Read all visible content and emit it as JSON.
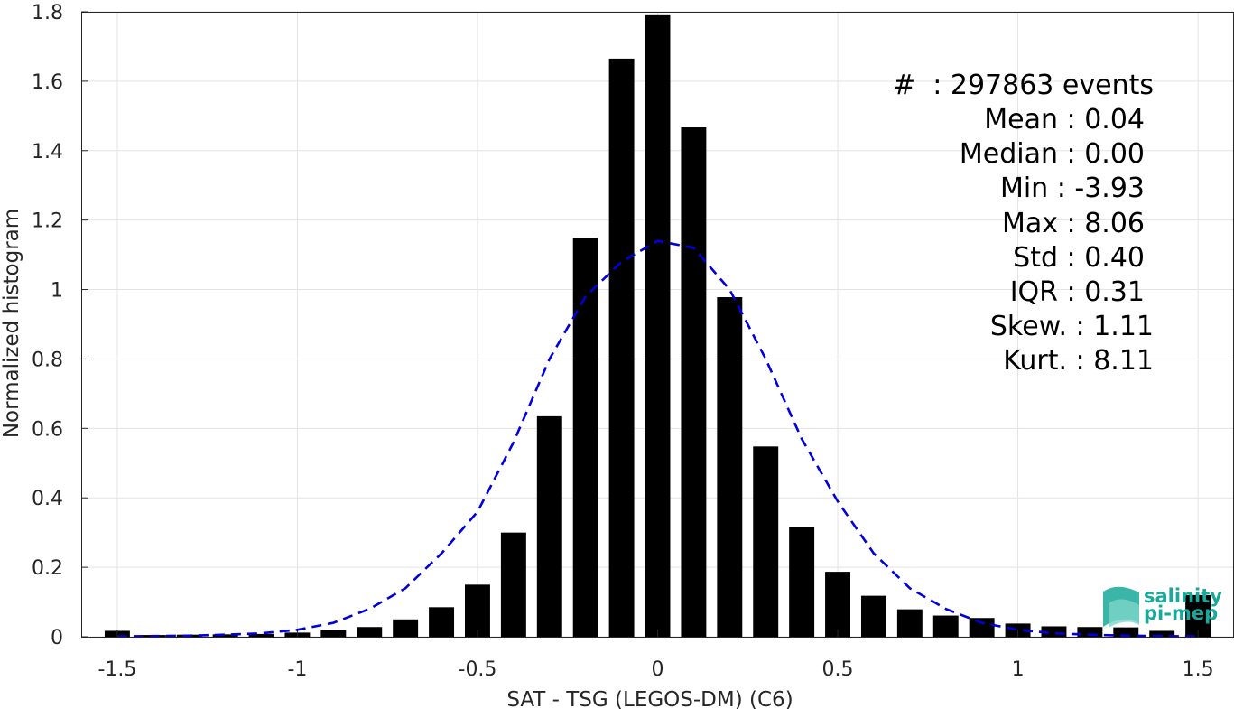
{
  "chart_data": {
    "type": "bar",
    "xlabel": "SAT - TSG (LEGOS-DM) (C6)",
    "ylabel": "Normalized histogram",
    "xlim": [
      -1.6,
      1.6
    ],
    "ylim": [
      0,
      1.8
    ],
    "grid": true,
    "x_ticks": [
      -1.5,
      -1,
      -0.5,
      0,
      0.5,
      1,
      1.5
    ],
    "x_tick_labels": [
      "-1.5",
      "-1",
      "-0.5",
      "0",
      "0.5",
      "1",
      "1.5"
    ],
    "y_ticks": [
      0,
      0.2,
      0.4,
      0.6,
      0.8,
      1,
      1.2,
      1.4,
      1.6,
      1.8
    ],
    "y_tick_labels": [
      "0",
      "0.2",
      "0.4",
      "0.6",
      "0.8",
      "1",
      "1.2",
      "1.4",
      "1.6",
      "1.8"
    ],
    "bar_width": 0.07,
    "bar_color": "#000000",
    "bars": {
      "x": [
        -1.5,
        -1.4,
        -1.3,
        -1.2,
        -1.1,
        -1.0,
        -0.9,
        -0.8,
        -0.7,
        -0.6,
        -0.5,
        -0.4,
        -0.3,
        -0.2,
        -0.1,
        0.0,
        0.1,
        0.2,
        0.3,
        0.4,
        0.5,
        0.6,
        0.7,
        0.8,
        0.9,
        1.0,
        1.1,
        1.2,
        1.3,
        1.4,
        1.5
      ],
      "values": [
        0.017,
        0.005,
        0.006,
        0.007,
        0.008,
        0.012,
        0.02,
        0.028,
        0.05,
        0.085,
        0.15,
        0.3,
        0.635,
        1.148,
        1.665,
        1.79,
        1.467,
        0.978,
        0.548,
        0.315,
        0.187,
        0.118,
        0.079,
        0.061,
        0.054,
        0.038,
        0.03,
        0.028,
        0.027,
        0.017,
        0.12
      ]
    },
    "fit_curve": {
      "style": "dashed",
      "color": "#0000dd",
      "x": [
        -1.5,
        -1.4,
        -1.3,
        -1.2,
        -1.1,
        -1.0,
        -0.9,
        -0.8,
        -0.7,
        -0.6,
        -0.5,
        -0.4,
        -0.3,
        -0.2,
        -0.1,
        0.0,
        0.1,
        0.2,
        0.3,
        0.4,
        0.5,
        0.6,
        0.7,
        0.8,
        0.9,
        1.0,
        1.1,
        1.2,
        1.3,
        1.4,
        1.5
      ],
      "y": [
        0.001,
        0.002,
        0.003,
        0.006,
        0.01,
        0.02,
        0.04,
        0.08,
        0.14,
        0.24,
        0.36,
        0.56,
        0.8,
        0.98,
        1.08,
        1.14,
        1.12,
        1.0,
        0.8,
        0.57,
        0.39,
        0.24,
        0.14,
        0.08,
        0.04,
        0.02,
        0.01,
        0.006,
        0.003,
        0.002,
        0.001
      ]
    },
    "annotation": {
      "lines": [
        "#  : 297863 events",
        "Mean : 0.04",
        "Median : 0.00",
        "Min : -3.93",
        "Max : 8.06",
        "Std : 0.40",
        "IQR : 0.31",
        "Skew. : 1.11",
        "Kurt. : 8.11"
      ],
      "placement": "top-right"
    }
  },
  "logo": {
    "line1": "salinity",
    "line2": "pi-mep",
    "color": "#1aa89a"
  }
}
